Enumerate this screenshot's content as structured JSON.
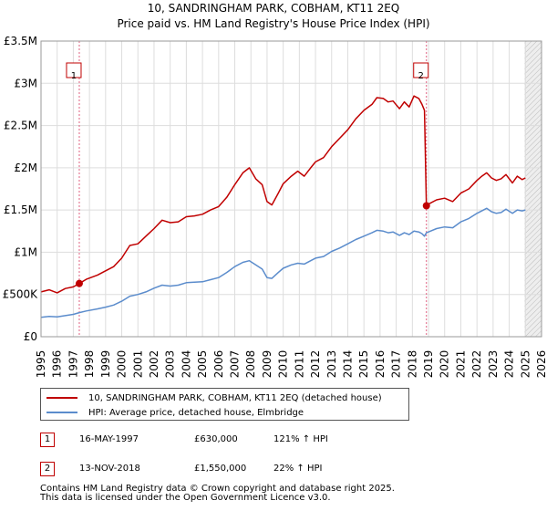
{
  "chart_data": {
    "type": "line",
    "title": "10, SANDRINGHAM PARK, COBHAM, KT11 2EQ",
    "subtitle": "Price paid vs. HM Land Registry's House Price Index (HPI)",
    "xlabel": "",
    "ylabel": "",
    "xlim": [
      1995,
      2026
    ],
    "ylim": [
      0,
      3500000
    ],
    "x_ticks": [
      "1995",
      "1996",
      "1997",
      "1998",
      "1999",
      "2000",
      "2001",
      "2002",
      "2003",
      "2004",
      "2005",
      "2006",
      "2007",
      "2008",
      "2009",
      "2010",
      "2011",
      "2012",
      "2013",
      "2014",
      "2015",
      "2016",
      "2017",
      "2018",
      "2019",
      "2020",
      "2021",
      "2022",
      "2023",
      "2024",
      "2025",
      "2026"
    ],
    "y_ticks": [
      {
        "value": 0,
        "label": "£0"
      },
      {
        "value": 500000,
        "label": "£500K"
      },
      {
        "value": 1000000,
        "label": "£1M"
      },
      {
        "value": 1500000,
        "label": "£1.5M"
      },
      {
        "value": 2000000,
        "label": "£2M"
      },
      {
        "value": 2500000,
        "label": "£2.5M"
      },
      {
        "value": 3000000,
        "label": "£3M"
      },
      {
        "value": 3500000,
        "label": "£3.5M"
      }
    ],
    "grid": true,
    "series": [
      {
        "name": "10, SANDRINGHAM PARK, COBHAM, KT11 2EQ (detached house)",
        "color": "#c00000",
        "x": [
          1995.0,
          1995.5,
          1996.0,
          1996.5,
          1997.0,
          1997.37,
          1997.8,
          1998.5,
          1999.0,
          1999.5,
          2000.0,
          2000.5,
          2001.0,
          2001.5,
          2002.0,
          2002.5,
          2003.0,
          2003.5,
          2004.0,
          2004.5,
          2005.0,
          2005.5,
          2006.0,
          2006.5,
          2007.0,
          2007.5,
          2007.9,
          2008.3,
          2008.7,
          2009.0,
          2009.3,
          2009.7,
          2010.0,
          2010.5,
          2010.9,
          2011.3,
          2011.7,
          2012.0,
          2012.5,
          2013.0,
          2013.5,
          2014.0,
          2014.5,
          2015.0,
          2015.5,
          2015.8,
          2016.2,
          2016.5,
          2016.8,
          2017.2,
          2017.5,
          2017.8,
          2018.1,
          2018.4,
          2018.6,
          2018.75,
          2018.87,
          2019.0,
          2019.5,
          2020.0,
          2020.5,
          2021.0,
          2021.5,
          2022.0,
          2022.3,
          2022.6,
          2022.9,
          2023.2,
          2023.5,
          2023.8,
          2024.2,
          2024.5,
          2024.8,
          2025.0
        ],
        "values": [
          530000,
          555000,
          520000,
          570000,
          590000,
          630000,
          680000,
          730000,
          780000,
          830000,
          930000,
          1080000,
          1100000,
          1190000,
          1280000,
          1380000,
          1350000,
          1360000,
          1420000,
          1430000,
          1450000,
          1500000,
          1540000,
          1650000,
          1800000,
          1940000,
          2000000,
          1870000,
          1800000,
          1600000,
          1560000,
          1700000,
          1810000,
          1900000,
          1960000,
          1900000,
          2000000,
          2070000,
          2120000,
          2250000,
          2350000,
          2450000,
          2580000,
          2680000,
          2750000,
          2830000,
          2820000,
          2780000,
          2790000,
          2700000,
          2780000,
          2720000,
          2850000,
          2820000,
          2750000,
          2680000,
          1550000,
          1570000,
          1620000,
          1640000,
          1600000,
          1700000,
          1750000,
          1850000,
          1900000,
          1940000,
          1880000,
          1850000,
          1870000,
          1920000,
          1820000,
          1900000,
          1860000,
          1880000
        ]
      },
      {
        "name": "HPI: Average price, detached house, Elmbridge",
        "color": "#5b8ccc",
        "x": [
          1995.0,
          1995.5,
          1996.0,
          1996.5,
          1997.0,
          1997.37,
          1997.8,
          1998.5,
          1999.0,
          1999.5,
          2000.0,
          2000.5,
          2001.0,
          2001.5,
          2002.0,
          2002.5,
          2003.0,
          2003.5,
          2004.0,
          2004.5,
          2005.0,
          2005.5,
          2006.0,
          2006.5,
          2007.0,
          2007.5,
          2007.9,
          2008.3,
          2008.7,
          2009.0,
          2009.3,
          2009.7,
          2010.0,
          2010.5,
          2010.9,
          2011.3,
          2011.7,
          2012.0,
          2012.5,
          2013.0,
          2013.5,
          2014.0,
          2014.5,
          2015.0,
          2015.5,
          2015.8,
          2016.2,
          2016.5,
          2016.8,
          2017.2,
          2017.5,
          2017.8,
          2018.1,
          2018.4,
          2018.6,
          2018.75,
          2018.87,
          2019.0,
          2019.5,
          2020.0,
          2020.5,
          2021.0,
          2021.5,
          2022.0,
          2022.3,
          2022.6,
          2022.9,
          2023.2,
          2023.5,
          2023.8,
          2024.2,
          2024.5,
          2024.8,
          2025.0
        ],
        "values": [
          230000,
          240000,
          235000,
          250000,
          265000,
          285000,
          305000,
          330000,
          350000,
          375000,
          420000,
          480000,
          500000,
          530000,
          575000,
          610000,
          600000,
          610000,
          640000,
          645000,
          650000,
          675000,
          700000,
          760000,
          830000,
          880000,
          900000,
          850000,
          800000,
          700000,
          690000,
          760000,
          810000,
          850000,
          870000,
          860000,
          900000,
          930000,
          950000,
          1010000,
          1050000,
          1100000,
          1150000,
          1190000,
          1230000,
          1260000,
          1250000,
          1230000,
          1240000,
          1200000,
          1230000,
          1210000,
          1250000,
          1240000,
          1220000,
          1190000,
          1230000,
          1240000,
          1280000,
          1300000,
          1290000,
          1360000,
          1400000,
          1460000,
          1490000,
          1520000,
          1480000,
          1460000,
          1470000,
          1510000,
          1460000,
          1500000,
          1490000,
          1500000
        ]
      }
    ],
    "annotations": [
      {
        "label": "1",
        "x": 1997.37,
        "value": 630000
      },
      {
        "label": "2",
        "x": 2018.87,
        "value": 1550000
      }
    ],
    "shaded_region": {
      "from": 2024.95,
      "to": 2026
    }
  },
  "legend": {
    "items": [
      {
        "label": "10, SANDRINGHAM PARK, COBHAM, KT11 2EQ (detached house)",
        "color": "#c00000"
      },
      {
        "label": "HPI: Average price, detached house, Elmbridge",
        "color": "#5b8ccc"
      }
    ]
  },
  "transactions": [
    {
      "badge": "1",
      "date": "16-MAY-1997",
      "price": "£630,000",
      "hpi": "121% ↑ HPI"
    },
    {
      "badge": "2",
      "date": "13-NOV-2018",
      "price": "£1,550,000",
      "hpi": "22% ↑ HPI"
    }
  ],
  "footer": {
    "line1": "Contains HM Land Registry data © Crown copyright and database right 2025.",
    "line2": "This data is licensed under the Open Government Licence v3.0."
  }
}
